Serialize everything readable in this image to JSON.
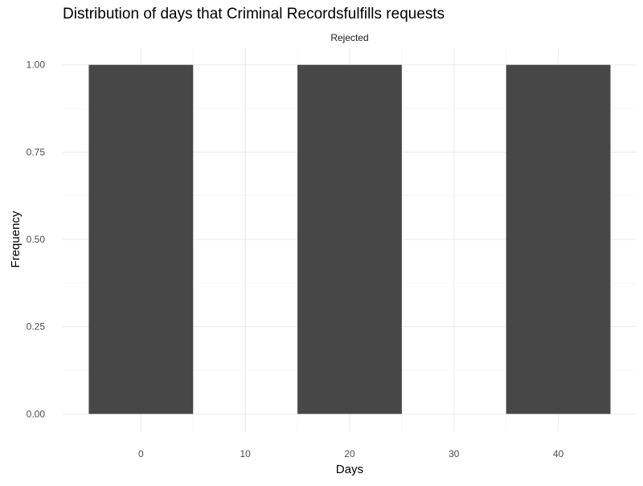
{
  "chart_data": {
    "type": "bar",
    "title": "Distribution of days that Criminal Recordsfulfills requests",
    "facet_label": "Rejected",
    "xlabel": "Days",
    "ylabel": "Frequency",
    "bin_width": 10,
    "bars": [
      {
        "x": 0,
        "value": 1
      },
      {
        "x": 20,
        "value": 1
      },
      {
        "x": 40,
        "value": 1
      }
    ],
    "xlim": [
      -7.5,
      47.5
    ],
    "ylim": [
      -0.05,
      1.05
    ],
    "x_ticks": [
      0,
      10,
      20,
      30,
      40
    ],
    "x_tick_labels": [
      "0",
      "10",
      "20",
      "30",
      "40"
    ],
    "y_ticks": [
      0,
      0.25,
      0.5,
      0.75,
      1.0
    ],
    "y_tick_labels": [
      "0.00",
      "0.25",
      "0.50",
      "0.75",
      "1.00"
    ],
    "bar_color": "#474747",
    "grid": true,
    "legend": "none",
    "theme": "minimal"
  }
}
